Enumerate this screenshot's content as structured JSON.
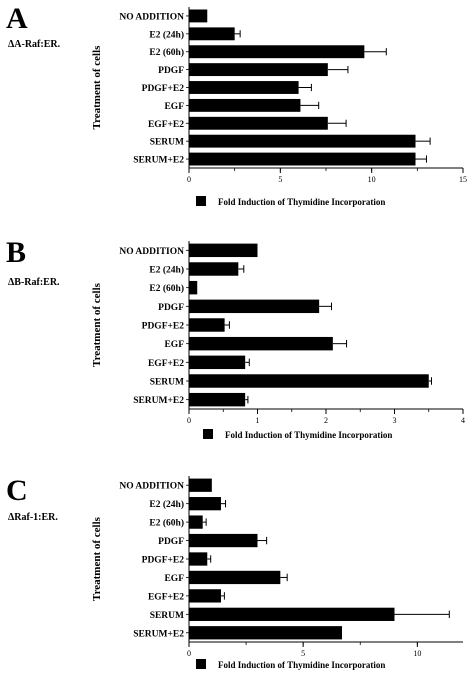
{
  "chart_data": [
    {
      "type": "bar",
      "orientation": "horizontal",
      "panel_label": "A",
      "construct": "ΔA-Raf:ER.",
      "ylabel": "Treatment of cells",
      "legend": "Fold Induction of Thymidine Incorporation",
      "xlim": [
        0,
        15
      ],
      "xticks": [
        "0",
        "5",
        "10",
        "15"
      ],
      "tick_values": [
        0,
        5,
        10,
        15
      ],
      "minor_step": 2.5,
      "categories": [
        "NO ADDITION",
        "E2 (24h)",
        "E2 (60h)",
        "PDGF",
        "PDGF+E2",
        "EGF",
        "EGF+E2",
        "SERUM",
        "SERUM+E2"
      ],
      "values": [
        1.0,
        2.5,
        9.6,
        7.6,
        6.0,
        6.1,
        7.6,
        12.4,
        12.4
      ],
      "errors": [
        0,
        0.3,
        1.2,
        1.1,
        0.7,
        1.0,
        1.0,
        0.8,
        0.6
      ]
    },
    {
      "type": "bar",
      "orientation": "horizontal",
      "panel_label": "B",
      "construct": "ΔB-Raf:ER.",
      "ylabel": "Treatment of cells",
      "legend": "Fold Induction of Thymidine Incorporation",
      "xlim": [
        0,
        4
      ],
      "xticks": [
        "0",
        "1",
        "2",
        "3",
        "4"
      ],
      "tick_values": [
        0,
        1,
        2,
        3,
        4
      ],
      "minor_step": 0.5,
      "categories": [
        "NO ADDITION",
        "E2 (24h)",
        "E2 (60h)",
        "PDGF",
        "PDGF+E2",
        "EGF",
        "EGF+E2",
        "SERUM",
        "SERUM+E2"
      ],
      "values": [
        1.0,
        0.72,
        0.12,
        1.9,
        0.52,
        2.1,
        0.82,
        3.5,
        0.82
      ],
      "errors": [
        0,
        0.08,
        0,
        0.18,
        0.07,
        0.2,
        0.06,
        0.04,
        0.04
      ]
    },
    {
      "type": "bar",
      "orientation": "horizontal",
      "panel_label": "C",
      "construct": "ΔRaf-1:ER.",
      "ylabel": "Treatment of cells",
      "legend": "Fold Induction of Thymidine Incorporation",
      "xlim": [
        0,
        12
      ],
      "xticks": [
        "0",
        "5",
        "10"
      ],
      "tick_values": [
        0,
        5,
        10
      ],
      "minor_step": 2.5,
      "categories": [
        "NO ADDITION",
        "E2 (24h)",
        "E2 (60h)",
        "PDGF",
        "PDGF+E2",
        "EGF",
        "EGF+E2",
        "SERUM",
        "SERUM+E2"
      ],
      "values": [
        1.0,
        1.4,
        0.6,
        3.0,
        0.8,
        4.0,
        1.4,
        9.0,
        6.7
      ],
      "errors": [
        0,
        0.2,
        0.15,
        0.4,
        0.15,
        0.3,
        0.15,
        2.4,
        0
      ]
    }
  ]
}
